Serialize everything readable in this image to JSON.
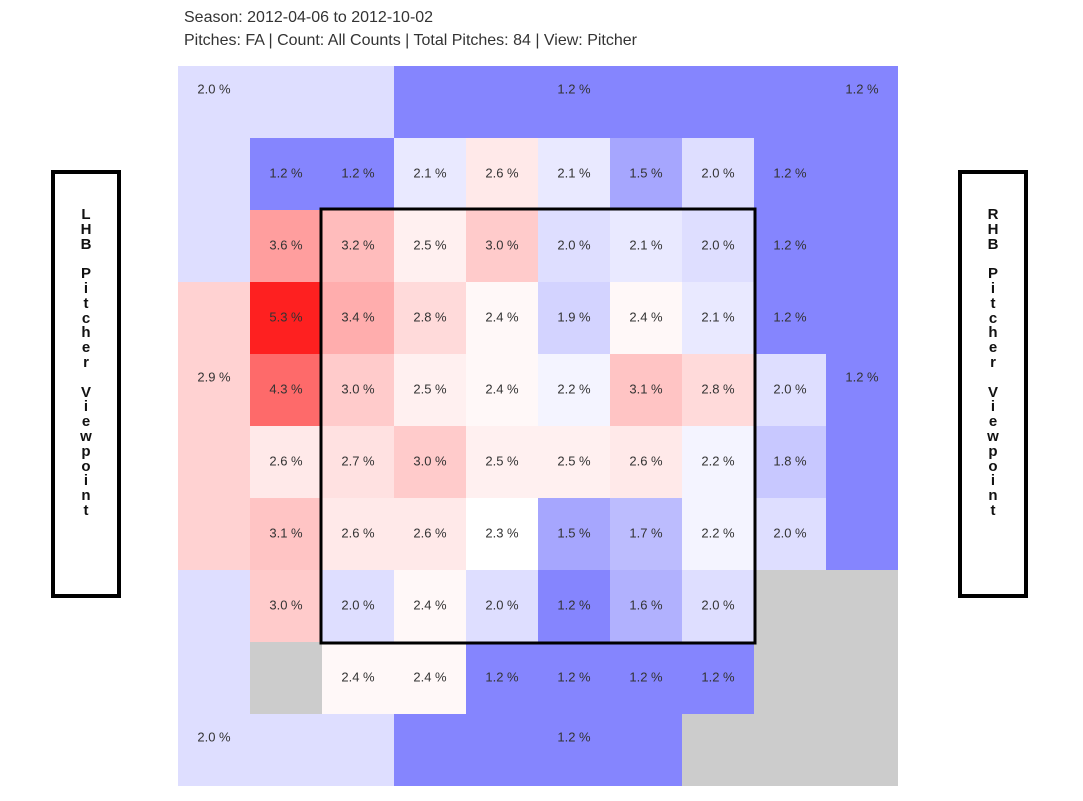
{
  "header": {
    "season": "Season: 2012-04-06 to 2012-10-02",
    "filters": "Pitches: FA | Count: All Counts | Total Pitches: 84 | View: Pitcher"
  },
  "labels": {
    "left": "LHB Pitcher Viewpoint",
    "right": "RHB Pitcher Viewpoint"
  },
  "colors": {
    "blue_strong": "#8585fe",
    "blue_light": "#dedefe",
    "red_strong": "#fe2020",
    "white": "#ffffff",
    "no_data": "#cccccc",
    "strike_zone_border": "#000000"
  },
  "chart_data": {
    "type": "heatmap",
    "grid": "10 columns x 10 rows (outer region cells drawn merged)",
    "color_scale": {
      "min": 1.2,
      "mid": 2.3,
      "max": 5.3
    },
    "outer_regions": [
      {
        "value": 2.0,
        "label": "2.0 %",
        "position": "top-left"
      },
      {
        "value": 1.2,
        "label": "1.2 %",
        "position": "top-center"
      },
      {
        "value": 1.2,
        "label": "1.2 %",
        "position": "top-right"
      },
      {
        "value": 2.9,
        "label": "2.9 %",
        "position": "middle-left"
      },
      {
        "value": 1.2,
        "label": "1.2 %",
        "position": "middle-right"
      },
      {
        "value": 2.0,
        "label": "2.0 %",
        "position": "bottom-left"
      },
      {
        "value": 1.2,
        "label": "1.2 %",
        "position": "bottom-center"
      },
      {
        "value": null,
        "label": "",
        "position": "bottom-right"
      }
    ],
    "inner_grid_rows": [
      [
        1.2,
        1.2,
        2.1,
        2.6,
        2.1,
        1.5,
        2.0,
        1.2
      ],
      [
        3.6,
        3.2,
        2.5,
        3.0,
        2.0,
        2.1,
        2.0,
        1.2
      ],
      [
        5.3,
        3.4,
        2.8,
        2.4,
        1.9,
        2.4,
        2.1,
        1.2
      ],
      [
        4.3,
        3.0,
        2.5,
        2.4,
        2.2,
        3.1,
        2.8,
        2.0
      ],
      [
        2.6,
        2.7,
        3.0,
        2.5,
        2.5,
        2.6,
        2.2,
        1.8
      ],
      [
        3.1,
        2.6,
        2.6,
        2.3,
        1.5,
        1.7,
        2.2,
        2.0
      ],
      [
        3.0,
        2.0,
        2.4,
        2.0,
        1.2,
        1.6,
        2.0,
        null
      ],
      [
        null,
        2.4,
        2.4,
        1.2,
        1.2,
        1.2,
        1.2,
        null
      ]
    ],
    "unit": "%",
    "strike_zone": "inner rows 2-7, columns 2-7"
  }
}
